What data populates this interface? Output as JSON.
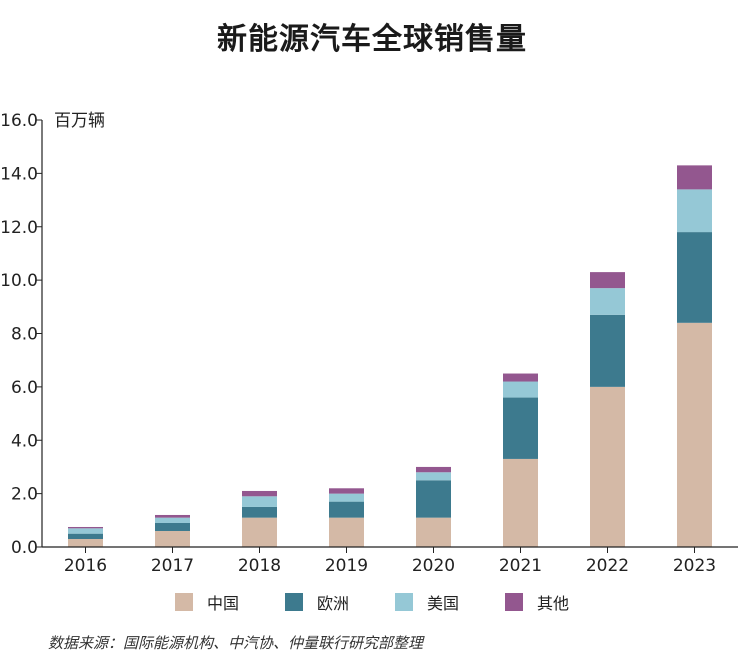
{
  "chart_data": {
    "type": "bar",
    "stacked": true,
    "title": "新能源汽车全球销售量",
    "ylabel": "百万辆",
    "xlabel": "",
    "categories": [
      "2016",
      "2017",
      "2018",
      "2019",
      "2020",
      "2021",
      "2022",
      "2023"
    ],
    "ylim": [
      0,
      16
    ],
    "yticks": [
      "0.0",
      "2.0",
      "4.0",
      "6.0",
      "8.0",
      "10.0",
      "12.0",
      "14.0",
      "16.0"
    ],
    "grid": false,
    "legend_position": "bottom",
    "series": [
      {
        "name": "中国",
        "color": "#d4b9a6",
        "values": [
          0.3,
          0.6,
          1.1,
          1.1,
          1.1,
          3.3,
          6.0,
          8.4
        ]
      },
      {
        "name": "欧洲",
        "color": "#3d7a8e",
        "values": [
          0.2,
          0.3,
          0.4,
          0.6,
          1.4,
          2.3,
          2.7,
          3.4
        ]
      },
      {
        "name": "美国",
        "color": "#95c8d6",
        "values": [
          0.2,
          0.2,
          0.4,
          0.3,
          0.3,
          0.6,
          1.0,
          1.6
        ]
      },
      {
        "name": "其他",
        "color": "#93578f",
        "values": [
          0.05,
          0.1,
          0.2,
          0.2,
          0.2,
          0.3,
          0.6,
          0.9
        ]
      }
    ],
    "source": "数据来源：国际能源机构、中汽协、仲量联行研究部整理"
  }
}
